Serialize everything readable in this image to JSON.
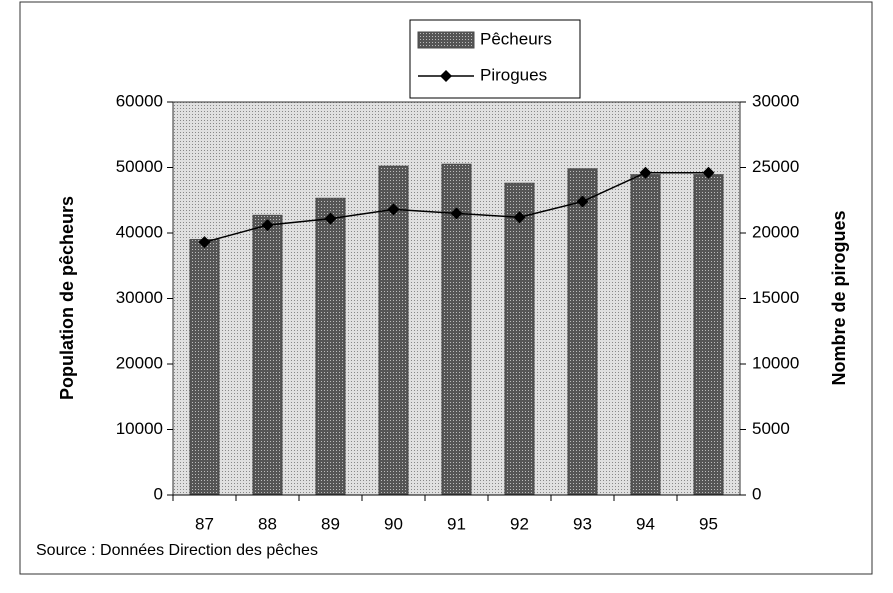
{
  "chart_data": {
    "type": "bar",
    "categories": [
      "87",
      "88",
      "89",
      "90",
      "91",
      "92",
      "93",
      "94",
      "95"
    ],
    "series": [
      {
        "name": "Pêcheurs",
        "type": "bar",
        "color": "#4a4a4a",
        "values": [
          39000,
          42700,
          45300,
          50200,
          50500,
          47600,
          49800,
          48900,
          48900
        ]
      },
      {
        "name": "Pirogues",
        "type": "line",
        "axis": "y2",
        "color": "#000000",
        "values": [
          19300,
          20600,
          21100,
          21800,
          21500,
          21200,
          22400,
          24600,
          24600
        ]
      }
    ],
    "ylabel": "Population de pêcheurs",
    "y2label": "Nombre de pirogues",
    "ylim": [
      0,
      60000
    ],
    "yticks": [
      0,
      10000,
      20000,
      30000,
      40000,
      50000,
      60000
    ],
    "y2lim": [
      0,
      30000
    ],
    "y2ticks": [
      0,
      5000,
      10000,
      15000,
      20000,
      25000,
      30000
    ],
    "legend": "top",
    "source": "Source : Données Direction des pêches"
  }
}
